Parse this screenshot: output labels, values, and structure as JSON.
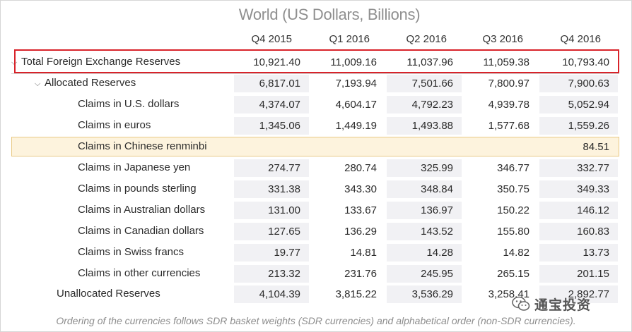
{
  "title": "World (US Dollars, Billions)",
  "columns": [
    "Q4 2015",
    "Q1 2016",
    "Q2 2016",
    "Q3 2016",
    "Q4 2016"
  ],
  "rows": [
    {
      "label": "Total Foreign Exchange Reserves",
      "values": [
        "10,921.40",
        "11,009.16",
        "11,037.96",
        "11,059.38",
        "10,793.40"
      ]
    },
    {
      "label": "Allocated Reserves",
      "values": [
        "6,817.01",
        "7,193.94",
        "7,501.66",
        "7,800.97",
        "7,900.63"
      ]
    },
    {
      "label": "Claims in U.S. dollars",
      "values": [
        "4,374.07",
        "4,604.17",
        "4,792.23",
        "4,939.78",
        "5,052.94"
      ]
    },
    {
      "label": "Claims in euros",
      "values": [
        "1,345.06",
        "1,449.19",
        "1,493.88",
        "1,577.68",
        "1,559.26"
      ]
    },
    {
      "label": "Claims in Chinese renminbi",
      "values": [
        "",
        "",
        "",
        "",
        "84.51"
      ]
    },
    {
      "label": "Claims in Japanese yen",
      "values": [
        "274.77",
        "280.74",
        "325.99",
        "346.77",
        "332.77"
      ]
    },
    {
      "label": "Claims in pounds sterling",
      "values": [
        "331.38",
        "343.30",
        "348.84",
        "350.75",
        "349.33"
      ]
    },
    {
      "label": "Claims in Australian dollars",
      "values": [
        "131.00",
        "133.67",
        "136.97",
        "150.22",
        "146.12"
      ]
    },
    {
      "label": "Claims in Canadian dollars",
      "values": [
        "127.65",
        "136.29",
        "143.52",
        "155.80",
        "160.83"
      ]
    },
    {
      "label": "Claims in Swiss francs",
      "values": [
        "19.77",
        "14.81",
        "14.28",
        "14.82",
        "13.73"
      ]
    },
    {
      "label": "Claims in other currencies",
      "values": [
        "213.32",
        "231.76",
        "245.95",
        "265.15",
        "201.15"
      ]
    },
    {
      "label": "Unallocated Reserves",
      "values": [
        "4,104.39",
        "3,815.22",
        "3,536.29",
        "3,258.41",
        "2,892.77"
      ]
    }
  ],
  "footnote": "Ordering of the currencies follows SDR basket weights (SDR currencies) and alphabetical order (non-SDR currencies).",
  "watermark": "通宝投资",
  "icons": {
    "expand": "chevron-down-icon",
    "watermark": "wechat-icon"
  },
  "colors": {
    "highlight_fill": "#fdf3dd",
    "highlight_border": "#e9c985",
    "annotation_red": "#d8232a",
    "shade": "#f1f1f4"
  }
}
